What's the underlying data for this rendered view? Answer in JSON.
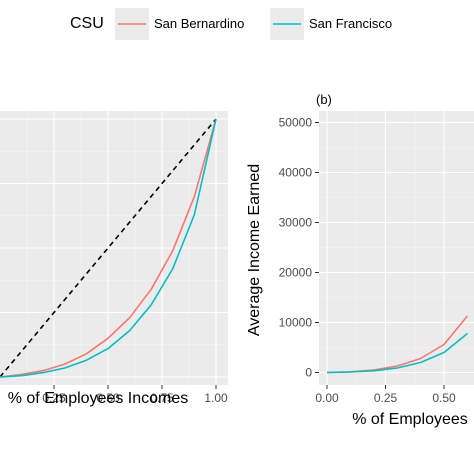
{
  "legend": {
    "title": "CSU",
    "position": "top",
    "entries": [
      {
        "label": "San Bernardino",
        "color": "#F8766D"
      },
      {
        "label": "San Francisco",
        "color": "#00BFC4"
      }
    ]
  },
  "chart_data": [
    {
      "type": "line",
      "panel_label": "",
      "xlabel": "% of Employees Incomes",
      "ylabel": "",
      "xlim": [
        0,
        1
      ],
      "ylim": [
        0,
        1
      ],
      "x_ticks": [
        "0.25",
        "0.50",
        "0.75",
        "1.00"
      ],
      "grid": true,
      "reference_line": {
        "style": "dashed",
        "color": "#000000",
        "x": [
          0,
          1
        ],
        "y": [
          0,
          1
        ]
      },
      "series": [
        {
          "name": "San Bernardino",
          "color": "#F8766D",
          "x": [
            0,
            0.1,
            0.2,
            0.3,
            0.4,
            0.5,
            0.6,
            0.7,
            0.8,
            0.9,
            1.0
          ],
          "y": [
            0,
            0.01,
            0.025,
            0.05,
            0.09,
            0.15,
            0.23,
            0.34,
            0.49,
            0.7,
            1.0
          ]
        },
        {
          "name": "San Francisco",
          "color": "#00BFC4",
          "x": [
            0,
            0.1,
            0.2,
            0.3,
            0.4,
            0.5,
            0.6,
            0.7,
            0.8,
            0.9,
            1.0
          ],
          "y": [
            0,
            0.005,
            0.017,
            0.035,
            0.065,
            0.11,
            0.18,
            0.28,
            0.42,
            0.63,
            1.0
          ]
        }
      ]
    },
    {
      "type": "line",
      "panel_label": "(b)",
      "xlabel": "% of Employees",
      "ylabel": "Average Income Earned",
      "xlim": [
        -0.05,
        0.6
      ],
      "ylim": [
        -2500,
        52500
      ],
      "x_ticks": [
        "0.00",
        "0.25",
        "0.50"
      ],
      "y_ticks": [
        "0",
        "10000",
        "20000",
        "30000",
        "40000",
        "50000"
      ],
      "grid": true,
      "series": [
        {
          "name": "San Bernardino",
          "color": "#F8766D",
          "x": [
            0,
            0.1,
            0.2,
            0.3,
            0.4,
            0.5,
            0.6
          ],
          "y": [
            0,
            150,
            500,
            1300,
            2800,
            5600,
            11300
          ]
        },
        {
          "name": "San Francisco",
          "color": "#00BFC4",
          "x": [
            0,
            0.1,
            0.2,
            0.3,
            0.4,
            0.5,
            0.6
          ],
          "y": [
            0,
            100,
            350,
            900,
            2000,
            4000,
            7800
          ]
        }
      ]
    }
  ]
}
